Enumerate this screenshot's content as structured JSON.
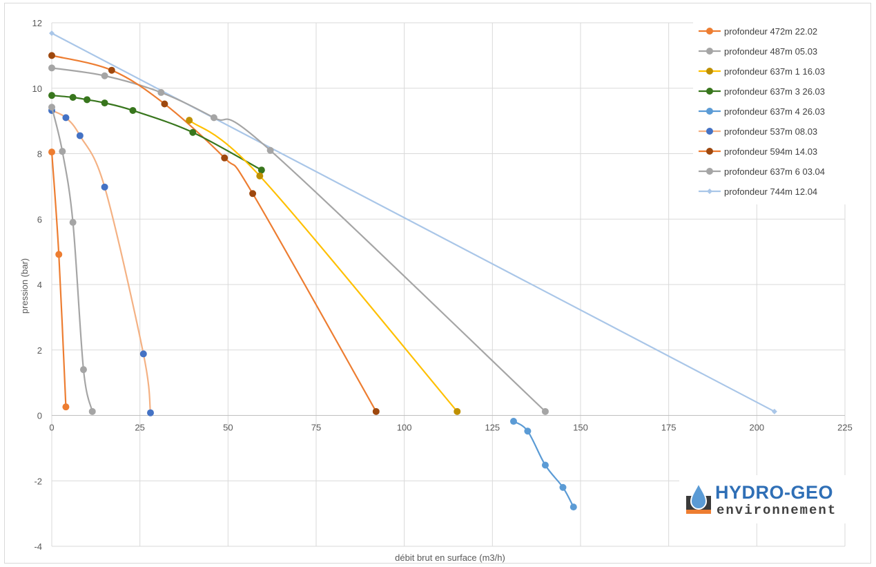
{
  "chart_data": {
    "type": "scatter",
    "xlabel": "débit brut en surface (m3/h)",
    "ylabel": "pression (bar)",
    "xlim": [
      0,
      225
    ],
    "ylim": [
      -4,
      12
    ],
    "x_ticks": [
      "0",
      "25",
      "50",
      "75",
      "100",
      "125",
      "150",
      "175",
      "200",
      "225"
    ],
    "y_ticks": [
      "12",
      "10",
      "8",
      "6",
      "4",
      "2",
      "0",
      "-2",
      "-4"
    ],
    "grid": true,
    "legend_position": "top-right",
    "series": [
      {
        "name": "profondeur 472m 22.02",
        "color": "#ed7d31",
        "marker": "circle",
        "points": [
          [
            0,
            8.05
          ],
          [
            2,
            4.92
          ],
          [
            4,
            0.26
          ]
        ]
      },
      {
        "name": "profondeur 487m 05.03",
        "color": "#a5a5a5",
        "marker": "circle",
        "points": [
          [
            0,
            9.42
          ],
          [
            3,
            8.07
          ],
          [
            6,
            5.9
          ],
          [
            9,
            1.4
          ],
          [
            11.5,
            0.12
          ]
        ]
      },
      {
        "name": "profondeur 637m 1 16.03",
        "color": "#bf9000",
        "marker": "circle",
        "line_color": "#ffc000",
        "points": [
          [
            39,
            9.02
          ],
          [
            59,
            7.32
          ],
          [
            115,
            0.12
          ]
        ]
      },
      {
        "name": "profondeur 637m 3 26.03",
        "color": "#38761d",
        "marker": "circle",
        "points": [
          [
            0,
            9.78
          ],
          [
            6,
            9.72
          ],
          [
            10,
            9.65
          ],
          [
            15,
            9.55
          ],
          [
            23,
            9.32
          ],
          [
            40,
            8.65
          ],
          [
            59.5,
            7.5
          ]
        ]
      },
      {
        "name": "profondeur 637m 4 26.03",
        "color": "#5b9bd5",
        "marker": "circle",
        "points": [
          [
            131,
            -0.18
          ],
          [
            135,
            -0.48
          ],
          [
            140,
            -1.52
          ],
          [
            145,
            -2.2
          ],
          [
            148,
            -2.8
          ]
        ]
      },
      {
        "name": "profondeur 537m 08.03",
        "color": "#f4b183",
        "marker": "circle",
        "marker_color": "#4472c4",
        "points": [
          [
            0,
            9.32
          ],
          [
            4,
            9.1
          ],
          [
            8,
            8.55
          ],
          [
            15,
            6.98
          ],
          [
            26,
            1.88
          ],
          [
            28,
            0.08
          ]
        ]
      },
      {
        "name": "profondeur 594m 14.03",
        "color": "#c55a11",
        "marker": "circle",
        "marker_color": "#9e480e",
        "line_color": "#ed7d31",
        "points": [
          [
            0,
            11
          ],
          [
            17,
            10.55
          ],
          [
            32,
            9.52
          ],
          [
            49,
            7.87
          ],
          [
            57,
            6.78
          ],
          [
            92,
            0.12
          ]
        ]
      },
      {
        "name": "profondeur 637m 6 03.04",
        "color": "#a5a5a5",
        "marker": "circle",
        "points": [
          [
            0,
            10.62
          ],
          [
            15,
            10.38
          ],
          [
            31,
            9.87
          ],
          [
            46,
            9.1
          ],
          [
            62,
            8.1
          ],
          [
            140,
            0.12
          ]
        ]
      },
      {
        "name": "profondeur 744m 12.04",
        "color": "#a9c6e8",
        "marker": "diamond",
        "points": [
          [
            0,
            11.68
          ],
          [
            205,
            0.12
          ]
        ]
      }
    ]
  },
  "logo": {
    "line1": "HYDRO-GEO",
    "line2": "environnement"
  }
}
